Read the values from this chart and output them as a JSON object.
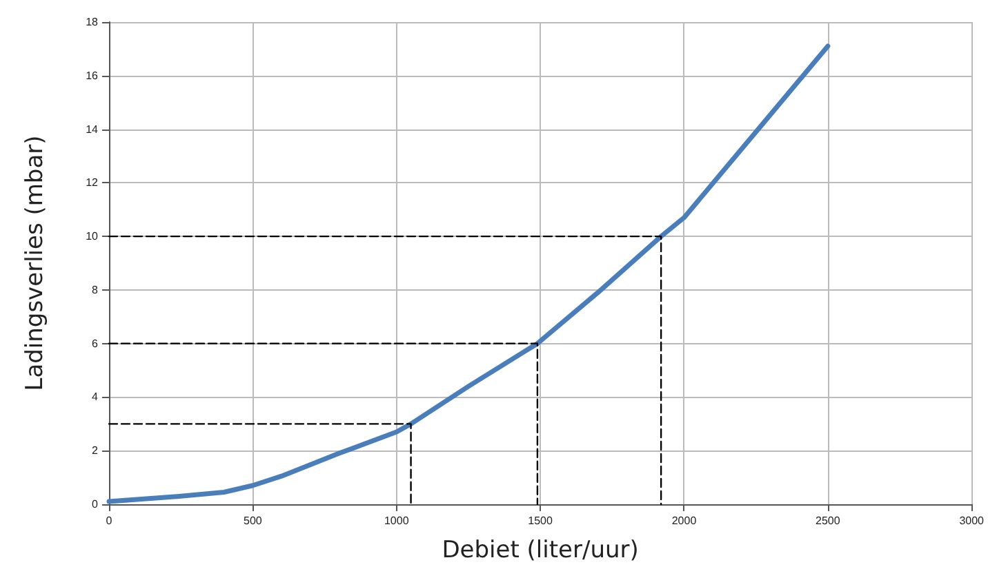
{
  "chart_data": {
    "type": "line",
    "xlabel": "Debiet (liter/uur)",
    "ylabel": "Ladingsverlies (mbar)",
    "xlim": [
      0,
      3000
    ],
    "xticks": [
      0,
      500,
      1000,
      1500,
      2000,
      2500,
      3000
    ],
    "ylim": [
      0,
      18
    ],
    "yticks": [
      0,
      2,
      4,
      6,
      8,
      10,
      12,
      14,
      16,
      18
    ],
    "grid": true,
    "marker": "none",
    "series": [
      {
        "color": "#4a7ebb",
        "line_style": "solid",
        "x": [
          0,
          250,
          400,
          500,
          600,
          800,
          1000,
          1050,
          1250,
          1490,
          1700,
          1920,
          2000,
          2250,
          2500
        ],
        "values": [
          0.1,
          0.3,
          0.45,
          0.7,
          1.05,
          1.9,
          2.7,
          3.0,
          4.4,
          6.0,
          7.9,
          10.0,
          10.7,
          13.9,
          17.1
        ]
      },
      {
        "color": "#000000",
        "line_style": "dashed",
        "x": [
          0,
          1050,
          1050
        ],
        "values": [
          3,
          3,
          0
        ]
      },
      {
        "color": "#000000",
        "line_style": "dashed",
        "x": [
          0,
          1490,
          1490
        ],
        "values": [
          6,
          6,
          0
        ]
      },
      {
        "color": "#000000",
        "line_style": "dashed",
        "x": [
          0,
          1920,
          1920
        ],
        "values": [
          10,
          10,
          0
        ]
      }
    ]
  }
}
